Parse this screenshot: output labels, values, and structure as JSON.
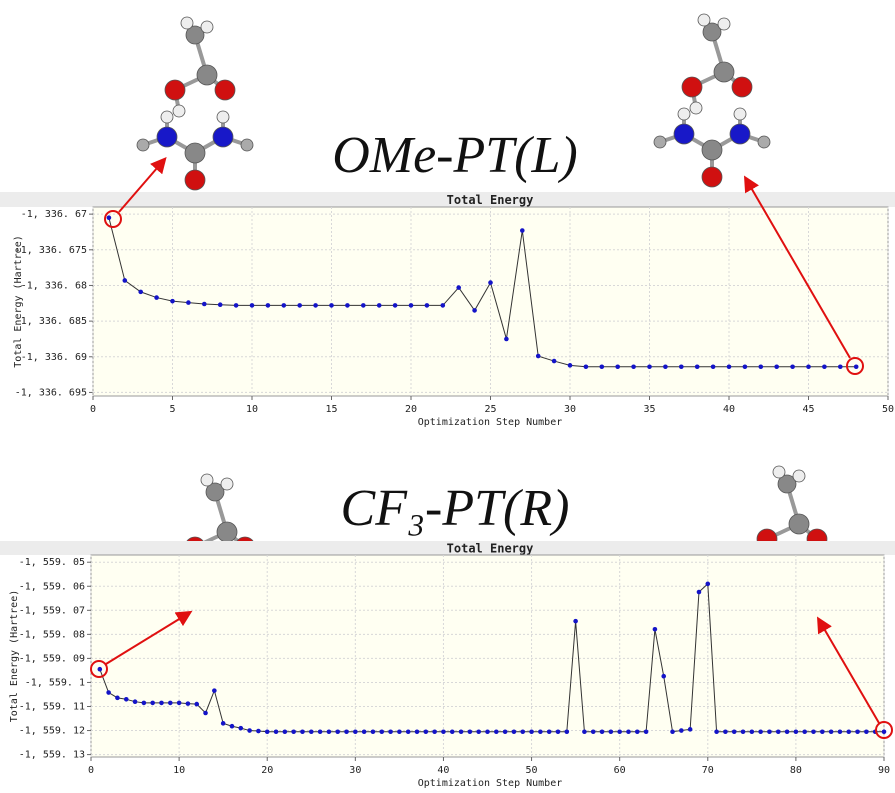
{
  "chart_data": [
    {
      "type": "line",
      "title": "OMe-PT(L)",
      "subtitle": "Total Energy",
      "xlabel": "Optimization Step Number",
      "ylabel": "Total Energy (Hartree)",
      "x": [
        1,
        2,
        3,
        4,
        5,
        6,
        7,
        8,
        9,
        10,
        11,
        12,
        13,
        14,
        15,
        16,
        17,
        18,
        19,
        20,
        21,
        22,
        23,
        24,
        25,
        26,
        27,
        28,
        29,
        30,
        31,
        32,
        33,
        34,
        35,
        36,
        37,
        38,
        39,
        40,
        41,
        42,
        43,
        44,
        45,
        46,
        47,
        48
      ],
      "values": [
        -1336.6705,
        -1336.6793,
        -1336.6809,
        -1336.6817,
        -1336.6822,
        -1336.6824,
        -1336.6826,
        -1336.6827,
        -1336.6828,
        -1336.6828,
        -1336.6828,
        -1336.6828,
        -1336.6828,
        -1336.6828,
        -1336.6828,
        -1336.6828,
        -1336.6828,
        -1336.6828,
        -1336.6828,
        -1336.6828,
        -1336.6828,
        -1336.6828,
        -1336.6803,
        -1336.6835,
        -1336.6796,
        -1336.6875,
        -1336.6723,
        -1336.6899,
        -1336.6906,
        -1336.6912,
        -1336.6914,
        -1336.6914,
        -1336.6914,
        -1336.6914,
        -1336.6914,
        -1336.6914,
        -1336.6914,
        -1336.6914,
        -1336.6914,
        -1336.6914,
        -1336.6914,
        -1336.6914,
        -1336.6914,
        -1336.6914,
        -1336.6914,
        -1336.6914,
        -1336.6914,
        -1336.6914
      ],
      "color": "#1414c8",
      "line_color": "#333333",
      "grid": true,
      "xlim": [
        0,
        50
      ],
      "xticks": [
        0,
        5,
        10,
        15,
        20,
        25,
        30,
        35,
        40,
        45,
        50
      ],
      "ylim": [
        -1336.6955,
        -1336.669
      ],
      "yticks": [
        {
          "value": -1336.67,
          "label": "-1, 336. 67"
        },
        {
          "value": -1336.675,
          "label": "-1, 336. 675"
        },
        {
          "value": -1336.68,
          "label": "-1, 336. 68"
        },
        {
          "value": -1336.685,
          "label": "-1, 336. 685"
        },
        {
          "value": -1336.69,
          "label": "-1, 336. 69"
        },
        {
          "value": -1336.695,
          "label": "-1, 336. 695"
        }
      ]
    },
    {
      "type": "line",
      "title": "CF₃-PT(R)",
      "subtitle": "Total Energy",
      "xlabel": "Optimization Step Number",
      "ylabel": "Total Energy (Hartree)",
      "x": [
        1,
        2,
        3,
        4,
        5,
        6,
        7,
        8,
        9,
        10,
        11,
        12,
        13,
        14,
        15,
        16,
        17,
        18,
        19,
        20,
        21,
        22,
        23,
        24,
        25,
        26,
        27,
        28,
        29,
        30,
        31,
        32,
        33,
        34,
        35,
        36,
        37,
        38,
        39,
        40,
        41,
        42,
        43,
        44,
        45,
        46,
        47,
        48,
        49,
        50,
        51,
        52,
        53,
        54,
        55,
        56,
        57,
        58,
        59,
        60,
        61,
        62,
        63,
        64,
        65,
        66,
        67,
        68,
        69,
        70,
        71,
        72,
        73,
        74,
        75,
        76,
        77,
        78,
        79,
        80,
        81,
        82,
        83,
        84,
        85,
        86,
        87,
        88,
        89,
        90
      ],
      "values": [
        -1559.0945,
        -1559.1042,
        -1559.1064,
        -1559.107,
        -1559.108,
        -1559.1085,
        -1559.1085,
        -1559.1085,
        -1559.1085,
        -1559.1085,
        -1559.1088,
        -1559.109,
        -1559.1127,
        -1559.1034,
        -1559.117,
        -1559.1182,
        -1559.119,
        -1559.12,
        -1559.1202,
        -1559.1205,
        -1559.1205,
        -1559.1205,
        -1559.1205,
        -1559.1205,
        -1559.1205,
        -1559.1205,
        -1559.1205,
        -1559.1205,
        -1559.1205,
        -1559.1205,
        -1559.1205,
        -1559.1205,
        -1559.1205,
        -1559.1205,
        -1559.1205,
        -1559.1205,
        -1559.1205,
        -1559.1205,
        -1559.1205,
        -1559.1205,
        -1559.1205,
        -1559.1205,
        -1559.1205,
        -1559.1205,
        -1559.1205,
        -1559.1205,
        -1559.1205,
        -1559.1205,
        -1559.1205,
        -1559.1205,
        -1559.1205,
        -1559.1205,
        -1559.1205,
        -1559.1205,
        -1559.0745,
        -1559.1205,
        -1559.1205,
        -1559.1205,
        -1559.1205,
        -1559.1205,
        -1559.1205,
        -1559.1205,
        -1559.1205,
        -1559.0779,
        -1559.0974,
        -1559.1205,
        -1559.12,
        -1559.1195,
        -1559.0624,
        -1559.059,
        -1559.1205,
        -1559.1205,
        -1559.1205,
        -1559.1205,
        -1559.1205,
        -1559.1205,
        -1559.1205,
        -1559.1205,
        -1559.1205,
        -1559.1205,
        -1559.1205,
        -1559.1205,
        -1559.1205,
        -1559.1205,
        -1559.1205,
        -1559.1205,
        -1559.1205,
        -1559.1205,
        -1559.1205,
        -1559.1205
      ],
      "color": "#1414c8",
      "line_color": "#333333",
      "grid": true,
      "xlim": [
        0,
        90
      ],
      "xticks": [
        0,
        10,
        20,
        30,
        40,
        50,
        60,
        70,
        80,
        90
      ],
      "ylim": [
        -1559.131,
        -1559.047
      ],
      "yticks": [
        {
          "value": -1559.05,
          "label": "-1, 559. 05"
        },
        {
          "value": -1559.06,
          "label": "-1, 559. 06"
        },
        {
          "value": -1559.07,
          "label": "-1, 559. 07"
        },
        {
          "value": -1559.08,
          "label": "-1, 559. 08"
        },
        {
          "value": -1559.09,
          "label": "-1, 559. 09"
        },
        {
          "value": -1559.1,
          "label": "-1, 559. 1"
        },
        {
          "value": -1559.11,
          "label": "-1, 559. 11"
        },
        {
          "value": -1559.12,
          "label": "-1, 559. 12"
        },
        {
          "value": -1559.13,
          "label": "-1, 559. 13"
        }
      ]
    }
  ]
}
